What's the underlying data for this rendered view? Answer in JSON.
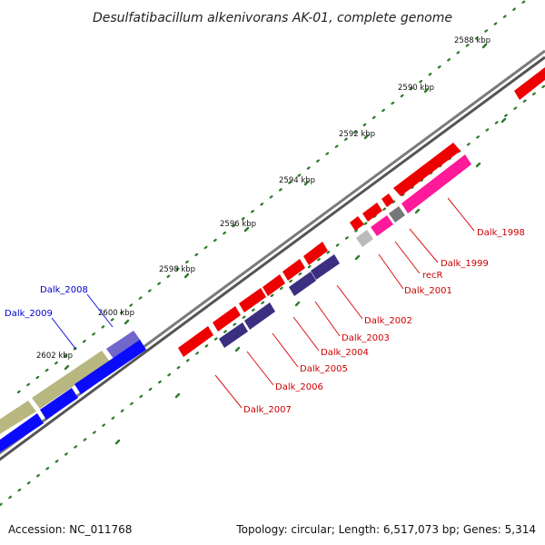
{
  "header": {
    "title": "Desulfatibacillum alkenivorans AK-01, complete genome"
  },
  "footer": {
    "accession": "Accession: NC_011768",
    "summary": "Topology: circular; Length: 6,517,073 bp; Genes: 5,314"
  },
  "scale_labels": [
    "2588 kbp",
    "2590 kbp",
    "2592 kbp",
    "2594 kbp",
    "2596 kbp",
    "2598 kbp",
    "2600 kbp",
    "2602 kbp"
  ],
  "gene_labels": {
    "red": [
      "Dalk_1998",
      "Dalk_1999",
      "recR",
      "Dalk_2001",
      "Dalk_2002",
      "Dalk_2003",
      "Dalk_2004",
      "Dalk_2005",
      "Dalk_2006",
      "Dalk_2007"
    ],
    "blue": [
      "Dalk_2008",
      "Dalk_2009"
    ]
  },
  "colors": {
    "forward_cds": "#ee0000",
    "forward_highlight": "#ff1a99",
    "reverse_cds": "#3a2f80",
    "blue_cds": "#0a0aff",
    "olive_cds": "#b9b780",
    "lavender_cds": "#7066cc",
    "backbone": "#7a7a7a",
    "tick": "#2a7a2a",
    "gene_label_red": "#cc0000",
    "gene_label_blue": "#0000cc"
  }
}
